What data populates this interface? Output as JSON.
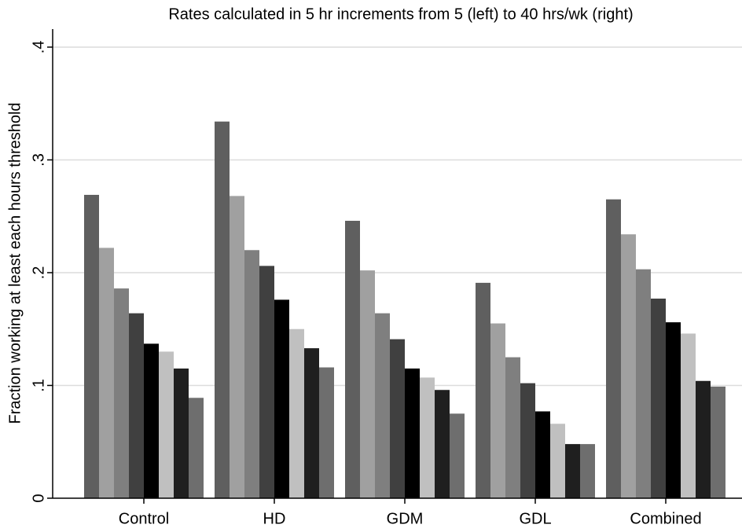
{
  "chart_data": {
    "type": "bar",
    "title": "Rates calculated in 5 hr increments from 5 (left) to 40 hrs/wk (right)",
    "y_label": "Fraction working at least each hours threshold",
    "categories": [
      "Control",
      "HD",
      "GDM",
      "GDL",
      "Combined"
    ],
    "series": [
      {
        "color": "#5f5f5f",
        "values": [
          0.269,
          0.334,
          0.246,
          0.191,
          0.265
        ]
      },
      {
        "color": "#a0a0a0",
        "values": [
          0.222,
          0.268,
          0.202,
          0.155,
          0.234
        ]
      },
      {
        "color": "#7f7f7f",
        "values": [
          0.186,
          0.22,
          0.164,
          0.125,
          0.203
        ]
      },
      {
        "color": "#404040",
        "values": [
          0.164,
          0.206,
          0.141,
          0.102,
          0.177
        ]
      },
      {
        "color": "#000000",
        "values": [
          0.137,
          0.176,
          0.115,
          0.077,
          0.156
        ]
      },
      {
        "color": "#c0c0c0",
        "values": [
          0.13,
          0.15,
          0.107,
          0.066,
          0.146
        ]
      },
      {
        "color": "#1f1f1f",
        "values": [
          0.115,
          0.133,
          0.096,
          0.048,
          0.104
        ]
      },
      {
        "color": "#6e6e6e",
        "values": [
          0.089,
          0.116,
          0.075,
          0.048,
          0.099
        ]
      }
    ],
    "ylim": [
      0,
      0.416
    ],
    "yticks": [
      0,
      {
        "value": 0.1,
        "label": ".1"
      },
      {
        "value": 0.2,
        "label": ".2"
      },
      {
        "value": 0.3,
        "label": ".3"
      },
      {
        "value": 0.4,
        "label": ".4"
      }
    ],
    "grid": true
  }
}
